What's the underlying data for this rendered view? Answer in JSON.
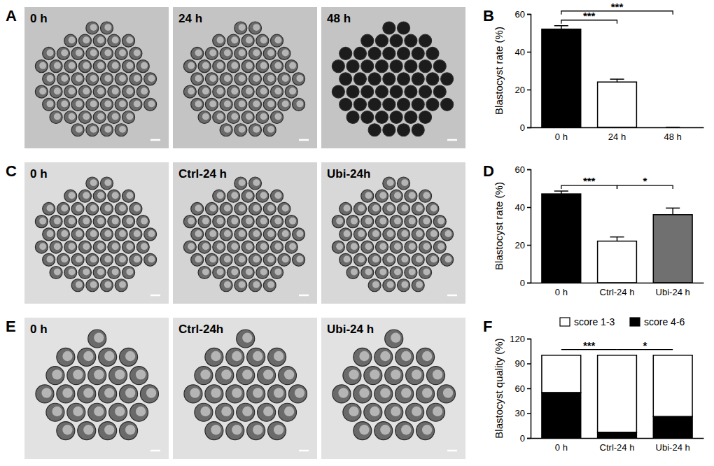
{
  "image_panels": [
    {
      "panel": "A",
      "labels": [
        "0 h",
        "24 h",
        "48 h"
      ]
    },
    {
      "panel": "C",
      "labels": [
        "0 h",
        "Ctrl-24 h",
        "Ubi-24h"
      ]
    },
    {
      "panel": "E",
      "labels": [
        "0 h",
        "Ctrl-24h",
        "Ubi-24 h"
      ]
    }
  ],
  "chart_data": [
    {
      "type": "bar",
      "panel": "B",
      "y_label": "Blastocyst rate (%)",
      "categories": [
        "0 h",
        "24 h",
        "48 h"
      ],
      "values": [
        52,
        24,
        0
      ],
      "errors": [
        1.8,
        1.5,
        0
      ],
      "colors": [
        "#000000",
        "#ffffff",
        "#ffffff"
      ],
      "ylim": [
        0,
        60
      ],
      "yticks": [
        0,
        20,
        40,
        60
      ],
      "annotations": [
        {
          "from": 0,
          "to": 1,
          "text": "***"
        },
        {
          "from": 0,
          "to": 2,
          "text": "***"
        }
      ]
    },
    {
      "type": "bar",
      "panel": "D",
      "y_label": "Blastocyst rate (%)",
      "categories": [
        "0 h",
        "Ctrl-24 h",
        "Ubi-24 h"
      ],
      "values": [
        47,
        22,
        36
      ],
      "errors": [
        1.5,
        2.2,
        3.5
      ],
      "colors": [
        "#000000",
        "#ffffff",
        "#707070"
      ],
      "ylim": [
        0,
        60
      ],
      "yticks": [
        0,
        20,
        40,
        60
      ],
      "annotations": [
        {
          "from": 0,
          "to": 1,
          "text": "***"
        },
        {
          "from": 1,
          "to": 2,
          "text": "*"
        }
      ]
    },
    {
      "type": "bar",
      "panel": "F",
      "y_label": "Blastocyst quality (%)",
      "stacked": true,
      "legend": "top",
      "categories": [
        "0 h",
        "Ctrl-24 h",
        "Ubi-24 h"
      ],
      "series": [
        {
          "name": "score 1-3",
          "color": "#ffffff",
          "values": [
            45,
            93,
            74
          ]
        },
        {
          "name": "score 4-6",
          "color": "#000000",
          "values": [
            55,
            7,
            26
          ],
          "errors": [
            3,
            2.5,
            2
          ]
        }
      ],
      "ylim": [
        0,
        120
      ],
      "yticks": [
        0,
        30,
        60,
        90,
        120
      ],
      "annotations": [
        {
          "from": 0,
          "to": 1,
          "text": "***"
        },
        {
          "from": 1,
          "to": 2,
          "text": "*"
        }
      ]
    }
  ]
}
